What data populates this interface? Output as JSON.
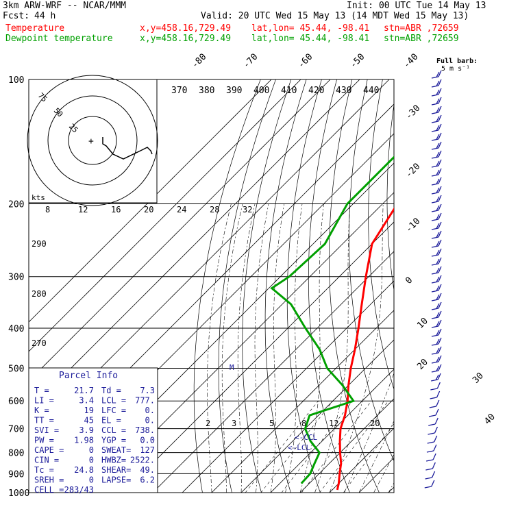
{
  "header": {
    "model": "3km ARW-WRF -- NCAR/MMM",
    "init": "Init: 00 UTC Tue 14 May 13",
    "fcst_label": "Fcst:",
    "fcst_value": "44 h",
    "valid": "Valid: 20 UTC Wed 15 May 13 (14 MDT Wed 15 May 13)",
    "temperature_label": "Temperature",
    "dewpoint_label": "Dewpoint temperature",
    "xy": "x,y=458.16,729.49",
    "latlon": "lat,lon= 45.44, -98.41",
    "stn": "stn=ABR ,72659"
  },
  "colors": {
    "temperature": "#ff0000",
    "dewpoint": "#00a000",
    "text": "#000000",
    "parcel": "#1a1a99"
  },
  "chart_data": {
    "type": "skew-T log-P sounding",
    "pressure_axis": {
      "labels": [
        "100",
        "200",
        "300",
        "400",
        "500",
        "600",
        "700",
        "800",
        "900",
        "1000"
      ],
      "scale": "log"
    },
    "isotherm_labels": [
      "-80",
      "-70",
      "-60",
      "-50",
      "-40",
      "-30",
      "-20",
      "-10",
      "0",
      "10",
      "20",
      "30",
      "40"
    ],
    "theta_labels": [
      "370",
      "380",
      "390",
      "400",
      "410",
      "420",
      "430",
      "440"
    ],
    "mixing_ratio_labels": [
      "2",
      "3",
      "5",
      "8",
      "12",
      "20"
    ],
    "hodograph": {
      "ring_labels": [
        "75",
        "50",
        "25"
      ],
      "speed_labels": [
        "8",
        "12",
        "16",
        "20",
        "24",
        "28",
        "32"
      ],
      "units": "kts",
      "trace": [
        [
          150,
          200
        ],
        [
          150,
          210
        ],
        [
          155,
          213
        ],
        [
          165,
          225
        ],
        [
          180,
          232
        ],
        [
          205,
          220
        ],
        [
          215,
          215
        ],
        [
          220,
          220
        ],
        [
          222,
          225
        ]
      ]
    },
    "wind_legend": {
      "title": "Full barb:",
      "value": "5 m s⁻¹"
    },
    "side_labels": [
      "290",
      "280",
      "270"
    ],
    "temperature_profile": [
      [
        100,
        -62
      ],
      [
        130,
        -58
      ],
      [
        150,
        -57
      ],
      [
        180,
        -57
      ],
      [
        200,
        -55
      ],
      [
        250,
        -50
      ],
      [
        300,
        -41
      ],
      [
        350,
        -33
      ],
      [
        400,
        -26
      ],
      [
        450,
        -20
      ],
      [
        500,
        -15
      ],
      [
        550,
        -10
      ],
      [
        600,
        -5
      ],
      [
        650,
        -1
      ],
      [
        700,
        2
      ],
      [
        750,
        6
      ],
      [
        800,
        10
      ],
      [
        850,
        14
      ],
      [
        900,
        17
      ],
      [
        950,
        20
      ],
      [
        985,
        21.7
      ]
    ],
    "dewpoint_profile": [
      [
        100,
        -76
      ],
      [
        150,
        -72
      ],
      [
        180,
        -72
      ],
      [
        200,
        -72
      ],
      [
        250,
        -66
      ],
      [
        300,
        -67
      ],
      [
        320,
        -69
      ],
      [
        350,
        -57
      ],
      [
        400,
        -44
      ],
      [
        450,
        -32
      ],
      [
        500,
        -23
      ],
      [
        550,
        -12
      ],
      [
        600,
        -3
      ],
      [
        650,
        -13
      ],
      [
        700,
        -10
      ],
      [
        750,
        -4
      ],
      [
        800,
        3
      ],
      [
        850,
        5
      ],
      [
        900,
        7
      ],
      [
        950,
        7.3
      ]
    ],
    "annotations": [
      "<-CCL",
      "<-LCL",
      "M"
    ]
  },
  "parcel_info": {
    "title": "Parcel Info",
    "rows": [
      [
        "T  =",
        "21.7",
        "Td =",
        "7.3"
      ],
      [
        "LI =",
        "3.4",
        "LCL =",
        "777."
      ],
      [
        "K  =",
        "19",
        "LFC =",
        "0."
      ],
      [
        "TT =",
        "45",
        "EL =",
        "0."
      ],
      [
        "SVI =",
        "3.9",
        "CCL =",
        "738."
      ],
      [
        "PW =",
        "1.98",
        "YGP =",
        "0.0"
      ],
      [
        "CAPE =",
        "0",
        "SWEAT=",
        "127"
      ],
      [
        "CIN =",
        "0",
        "HWBZ=",
        "2522."
      ],
      [
        "Tc =",
        "24.8",
        "SHEAR=",
        "49."
      ],
      [
        "SREH =",
        "0",
        "LAPSE=",
        "6.2"
      ],
      [
        "CELL =",
        "283/43",
        "",
        ""
      ]
    ]
  }
}
